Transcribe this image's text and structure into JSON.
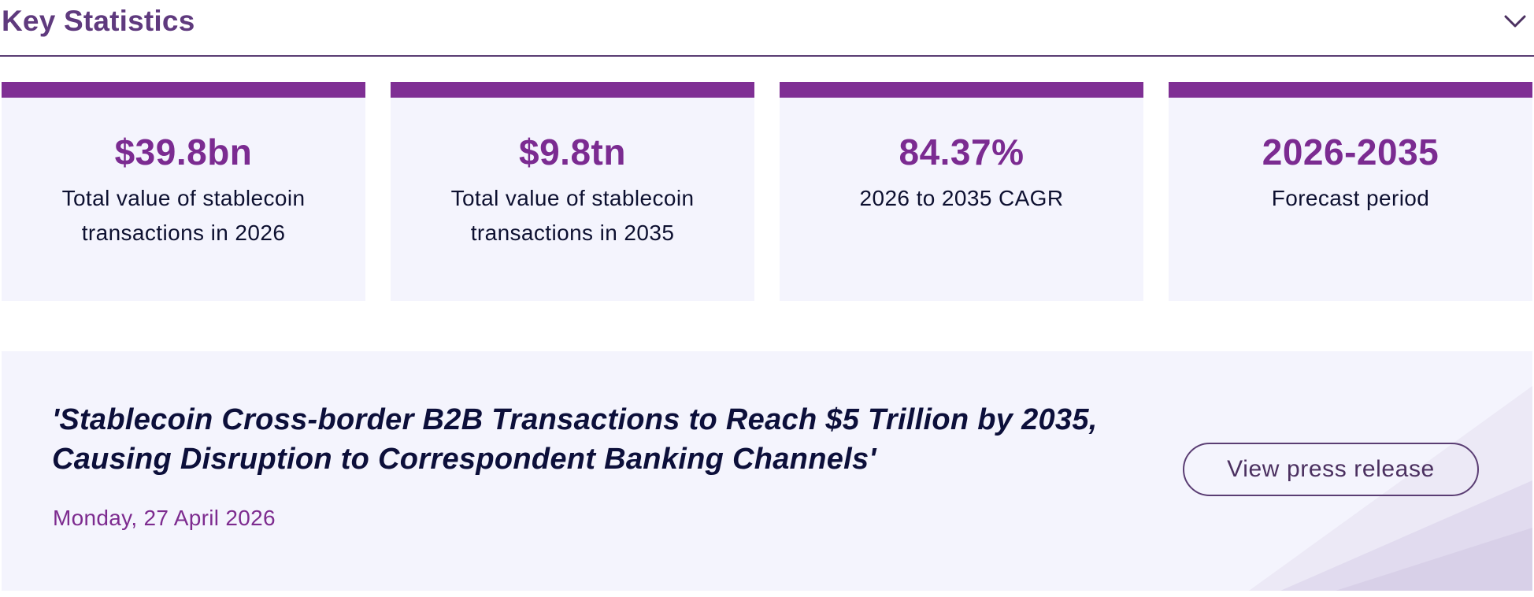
{
  "header": {
    "title": "Key Statistics",
    "toggle_icon": "chevron-down-icon"
  },
  "colors": {
    "accent": "#7f2f94",
    "card_bg": "#f4f4fd",
    "heading": "#5f3a7e",
    "text": "#0d1030"
  },
  "stats": [
    {
      "value": "$39.8bn",
      "label": "Total value of stablecoin transactions in 2026"
    },
    {
      "value": "$9.8tn",
      "label": "Total value of stablecoin transactions in 2035"
    },
    {
      "value": "84.37%",
      "label": "2026 to 2035 CAGR"
    },
    {
      "value": "2026-2035",
      "label": "Forecast period"
    }
  ],
  "press": {
    "headline": "'Stablecoin Cross-border B2B Transactions to Reach $5 Trillion by 2035, Causing Disruption to Correspondent Banking Channels'",
    "date": "Monday, 27 April 2026",
    "button_label": "View press release"
  }
}
